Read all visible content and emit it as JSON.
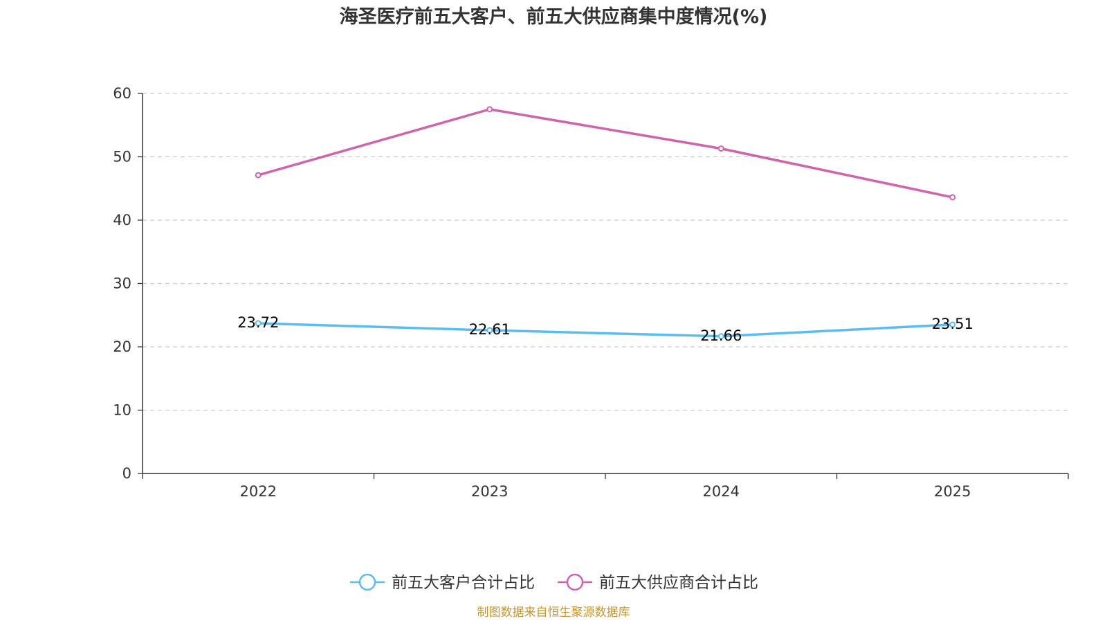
{
  "chart_data": {
    "type": "line",
    "title": "海圣医疗前五大客户、前五大供应商集中度情况(%)",
    "categories": [
      "2022",
      "2023",
      "2024",
      "2025"
    ],
    "ylim": [
      0,
      60
    ],
    "yticks": [
      0,
      10,
      20,
      30,
      40,
      50,
      60
    ],
    "grid": true,
    "legend_position": "bottom",
    "series": [
      {
        "name": "前五大客户合计占比",
        "values": [
          23.72,
          22.61,
          21.66,
          23.51
        ],
        "color": "#5bbcf0",
        "show_labels": true,
        "labels": [
          "23.72",
          "22.61",
          "21.66",
          "23.51"
        ]
      },
      {
        "name": "前五大供应商合计占比",
        "values": [
          47.1,
          57.5,
          51.3,
          43.6
        ],
        "color": "#d063ad",
        "show_labels": false
      }
    ],
    "source": "制图数据来自恒生聚源数据库"
  }
}
